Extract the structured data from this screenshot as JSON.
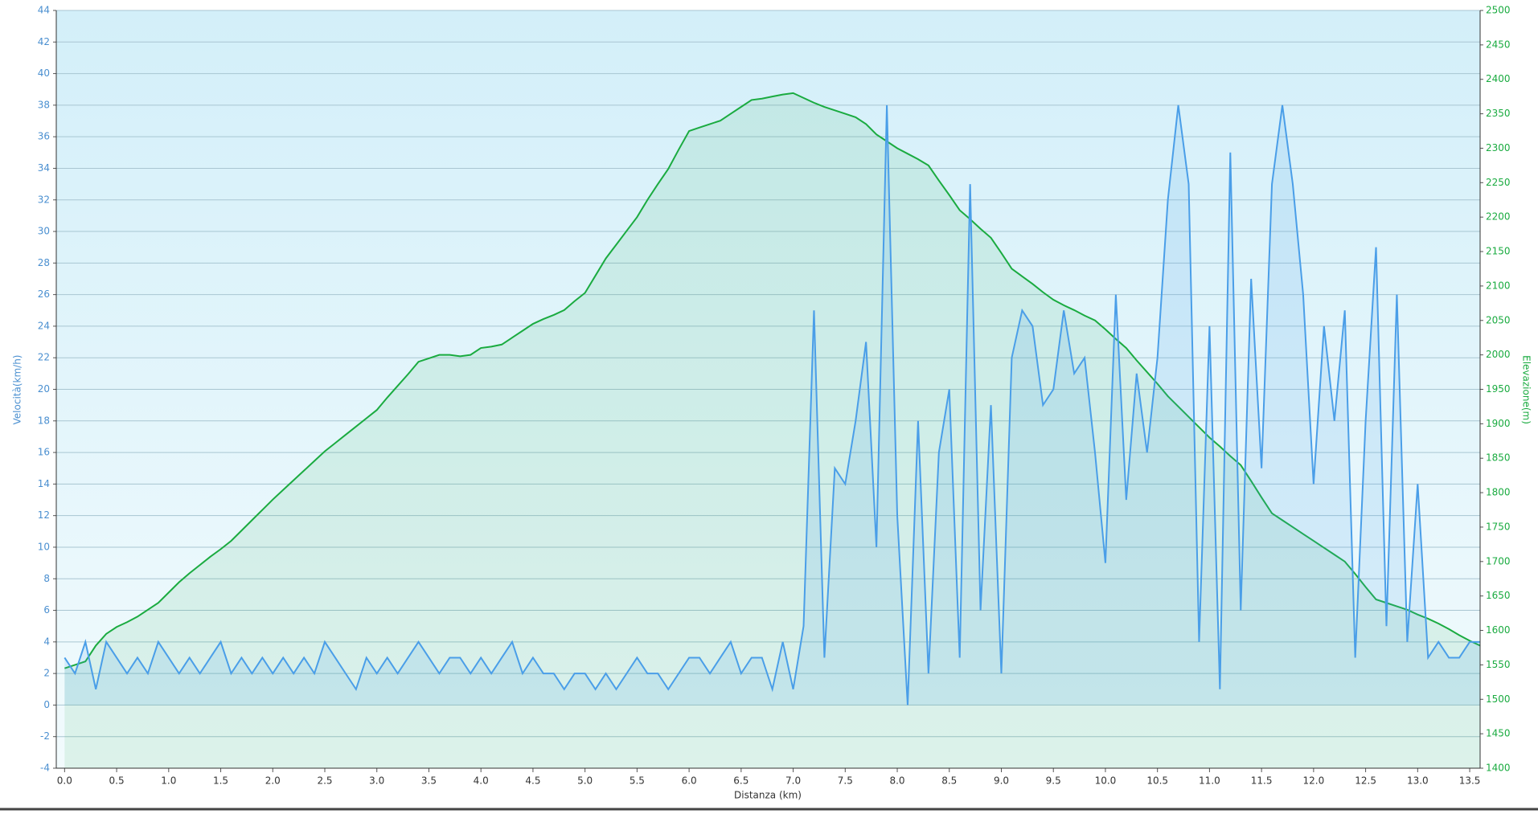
{
  "chart_data": {
    "type": "area",
    "x_label": "Distanza  (km)",
    "y_label": "Velocità(km/h)",
    "y2_label": "Elevazione(m)",
    "xlim": [
      -0.08,
      13.6
    ],
    "ylim": [
      -4,
      44
    ],
    "y2lim": [
      1400,
      2500
    ],
    "xticks": [
      {
        "value": 0,
        "label": "0.0"
      },
      0.5,
      {
        "value": 1,
        "label": "1.0"
      },
      1.5,
      {
        "value": 2,
        "label": "2.0"
      },
      2.5,
      {
        "value": 3,
        "label": "3.0"
      },
      3.5,
      {
        "value": 4,
        "label": "4.0"
      },
      4.5,
      {
        "value": 5,
        "label": "5.0"
      },
      5.5,
      {
        "value": 6,
        "label": "6.0"
      },
      6.5,
      {
        "value": 7,
        "label": "7.0"
      },
      7.5,
      {
        "value": 8,
        "label": "8.0"
      },
      8.5,
      {
        "value": 9,
        "label": "9.0"
      },
      9.5,
      {
        "value": 10,
        "label": "10.0"
      },
      10.5,
      {
        "value": 11,
        "label": "11.0"
      },
      11.5,
      {
        "value": 12,
        "label": "12.0"
      },
      12.5,
      {
        "value": 13,
        "label": "13.0"
      },
      13.5
    ],
    "yticks": [
      -4,
      -2,
      0,
      2,
      4,
      6,
      8,
      10,
      12,
      14,
      16,
      18,
      20,
      22,
      24,
      26,
      28,
      30,
      32,
      34,
      36,
      38,
      40,
      42,
      44
    ],
    "y2ticks": [
      1400,
      1450,
      1500,
      1550,
      1600,
      1650,
      1700,
      1750,
      1800,
      1850,
      1900,
      1950,
      2000,
      2050,
      2100,
      2150,
      2200,
      2250,
      2300,
      2350,
      2400,
      2450,
      2500
    ],
    "grid": true,
    "x": [
      0.0,
      0.1,
      0.2,
      0.3,
      0.4,
      0.5,
      0.6,
      0.7,
      0.8,
      0.9,
      1.0,
      1.1,
      1.2,
      1.3,
      1.4,
      1.5,
      1.6,
      1.7,
      1.8,
      1.9,
      2.0,
      2.1,
      2.2,
      2.3,
      2.4,
      2.5,
      2.6,
      2.7,
      2.8,
      2.9,
      3.0,
      3.1,
      3.2,
      3.3,
      3.4,
      3.5,
      3.6,
      3.7,
      3.8,
      3.9,
      4.0,
      4.1,
      4.2,
      4.3,
      4.4,
      4.5,
      4.6,
      4.7,
      4.8,
      4.9,
      5.0,
      5.1,
      5.2,
      5.3,
      5.4,
      5.5,
      5.6,
      5.7,
      5.8,
      5.9,
      6.0,
      6.1,
      6.2,
      6.3,
      6.4,
      6.5,
      6.6,
      6.7,
      6.8,
      6.9,
      7.0,
      7.1,
      7.2,
      7.3,
      7.4,
      7.5,
      7.6,
      7.7,
      7.8,
      7.9,
      8.0,
      8.1,
      8.2,
      8.3,
      8.4,
      8.5,
      8.6,
      8.7,
      8.8,
      8.9,
      9.0,
      9.1,
      9.2,
      9.3,
      9.4,
      9.5,
      9.6,
      9.7,
      9.8,
      9.9,
      10.0,
      10.1,
      10.2,
      10.3,
      10.4,
      10.5,
      10.6,
      10.7,
      10.8,
      10.9,
      11.0,
      11.1,
      11.2,
      11.3,
      11.4,
      11.5,
      11.6,
      11.7,
      11.8,
      11.9,
      12.0,
      12.1,
      12.2,
      12.3,
      12.4,
      12.5,
      12.6,
      12.7,
      12.8,
      12.9,
      13.0,
      13.1,
      13.2,
      13.3,
      13.4,
      13.5,
      13.6
    ],
    "series": [
      {
        "name": "Elevazione",
        "color": "#1aab40",
        "axis": "y2",
        "values": [
          1545,
          1550,
          1555,
          1578,
          1595,
          1605,
          1612,
          1620,
          1630,
          1640,
          1655,
          1670,
          1683,
          1695,
          1707,
          1718,
          1730,
          1745,
          1760,
          1775,
          1790,
          1804,
          1818,
          1832,
          1846,
          1860,
          1872,
          1884,
          1896,
          1908,
          1920,
          1938,
          1955,
          1972,
          1990,
          1995,
          2000,
          2000,
          1998,
          2000,
          2010,
          2012,
          2015,
          2025,
          2035,
          2045,
          2052,
          2058,
          2065,
          2078,
          2090,
          2115,
          2140,
          2160,
          2180,
          2200,
          2225,
          2248,
          2270,
          2298,
          2325,
          2330,
          2335,
          2340,
          2350,
          2360,
          2370,
          2372,
          2375,
          2378,
          2380,
          2373,
          2366,
          2360,
          2355,
          2350,
          2345,
          2335,
          2320,
          2310,
          2300,
          2292,
          2284,
          2275,
          2253,
          2232,
          2210,
          2197,
          2183,
          2170,
          2148,
          2125,
          2114,
          2103,
          2091,
          2080,
          2072,
          2065,
          2057,
          2050,
          2037,
          2023,
          2010,
          1992,
          1975,
          1958,
          1940,
          1925,
          1910,
          1895,
          1880,
          1867,
          1853,
          1840,
          1817,
          1793,
          1770,
          1760,
          1750,
          1740,
          1730,
          1720,
          1710,
          1700,
          1682,
          1663,
          1645,
          1640,
          1635,
          1630,
          1623,
          1617,
          1610,
          1602,
          1593,
          1585,
          1578
        ]
      },
      {
        "name": "Velocità",
        "color": "#4a9ee8",
        "axis": "y",
        "values": [
          3,
          2,
          4,
          1,
          4,
          3,
          2,
          3,
          2,
          4,
          3,
          2,
          3,
          2,
          3,
          4,
          2,
          3,
          2,
          3,
          2,
          3,
          2,
          3,
          2,
          4,
          3,
          2,
          1,
          3,
          2,
          3,
          2,
          3,
          4,
          3,
          2,
          3,
          3,
          2,
          3,
          2,
          3,
          4,
          2,
          3,
          2,
          2,
          1,
          2,
          2,
          1,
          2,
          1,
          2,
          3,
          2,
          2,
          1,
          2,
          3,
          3,
          2,
          3,
          4,
          2,
          3,
          3,
          1,
          4,
          1,
          5,
          25,
          3,
          15,
          14,
          18,
          23,
          10,
          38,
          12,
          0,
          18,
          2,
          16,
          20,
          3,
          33,
          6,
          19,
          2,
          22,
          25,
          24,
          19,
          20,
          25,
          21,
          22,
          16,
          9,
          26,
          13,
          21,
          16,
          22,
          32,
          38,
          33,
          4,
          24,
          1,
          35,
          6,
          27,
          15,
          33,
          38,
          33,
          26,
          14,
          24,
          18,
          25,
          3,
          18,
          29,
          5,
          26,
          4,
          14,
          3,
          4,
          3,
          3,
          4,
          4
        ]
      }
    ]
  }
}
